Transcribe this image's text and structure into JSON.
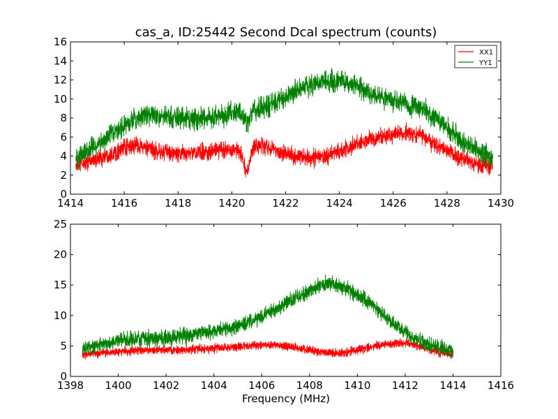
{
  "chart_data": [
    {
      "type": "line",
      "title": "cas_a, ID:25442 Second Dcal spectrum (counts)",
      "xlabel": "",
      "ylabel": "",
      "xlim": [
        1414,
        1430
      ],
      "ylim": [
        0,
        16
      ],
      "xticks": [
        "1414",
        "1416",
        "1418",
        "1420",
        "1422",
        "1424",
        "1426",
        "1428",
        "1430"
      ],
      "yticks": [
        "0",
        "2",
        "4",
        "6",
        "8",
        "10",
        "12",
        "14",
        "16"
      ],
      "grid": false,
      "legend": {
        "placement": "top-right",
        "entries": [
          "XX1",
          "YY1"
        ]
      },
      "series": [
        {
          "name": "XX1",
          "color": "#ff0000",
          "noise": 1.3,
          "x": [
            1414.2,
            1415.0,
            1416.0,
            1416.5,
            1417.0,
            1418.0,
            1419.0,
            1420.0,
            1420.3,
            1420.55,
            1420.8,
            1421.0,
            1421.5,
            1422.0,
            1422.5,
            1423.0,
            1423.5,
            1424.0,
            1424.5,
            1425.0,
            1425.5,
            1426.0,
            1426.5,
            1427.0,
            1427.5,
            1428.0,
            1428.5,
            1429.0,
            1429.7
          ],
          "y": [
            3.0,
            3.7,
            4.8,
            5.2,
            4.6,
            4.2,
            4.4,
            4.8,
            4.5,
            2.2,
            4.8,
            5.2,
            4.8,
            4.3,
            3.9,
            3.8,
            4.0,
            4.5,
            5.0,
            5.6,
            6.0,
            6.3,
            6.4,
            6.1,
            5.4,
            4.6,
            3.8,
            3.2,
            2.9
          ]
        },
        {
          "name": "YY1",
          "color": "#008000",
          "noise": 1.6,
          "x": [
            1414.2,
            1415.0,
            1416.0,
            1416.5,
            1417.0,
            1418.0,
            1419.0,
            1420.0,
            1420.3,
            1420.55,
            1420.8,
            1421.0,
            1421.5,
            1422.0,
            1422.5,
            1423.0,
            1423.5,
            1424.0,
            1424.5,
            1425.0,
            1425.5,
            1426.0,
            1426.5,
            1427.0,
            1427.5,
            1428.0,
            1428.5,
            1429.0,
            1429.7
          ],
          "y": [
            3.8,
            5.2,
            7.2,
            8.0,
            8.4,
            8.0,
            8.0,
            8.5,
            8.7,
            7.5,
            8.8,
            9.0,
            9.5,
            10.3,
            11.0,
            11.6,
            11.9,
            11.9,
            11.5,
            10.8,
            10.2,
            9.8,
            9.4,
            9.0,
            8.2,
            7.0,
            5.8,
            4.8,
            3.8
          ]
        }
      ]
    },
    {
      "type": "line",
      "title": "",
      "xlabel": "Frequency (MHz)",
      "ylabel": "",
      "xlim": [
        1398,
        1416
      ],
      "ylim": [
        0,
        25
      ],
      "xticks": [
        "1398",
        "1400",
        "1402",
        "1404",
        "1406",
        "1408",
        "1410",
        "1412",
        "1414",
        "1416"
      ],
      "yticks": [
        "0",
        "5",
        "10",
        "15",
        "20",
        "25"
      ],
      "grid": false,
      "series": [
        {
          "name": "XX1",
          "color": "#ff0000",
          "noise": 1.0,
          "x": [
            1398.5,
            1399.0,
            1400.0,
            1401.0,
            1402.0,
            1403.0,
            1404.0,
            1405.0,
            1406.0,
            1406.5,
            1407.0,
            1408.0,
            1408.5,
            1409.0,
            1409.5,
            1410.0,
            1411.0,
            1411.5,
            1412.0,
            1412.5,
            1413.0,
            1413.5,
            1414.0
          ],
          "y": [
            3.6,
            3.8,
            4.1,
            4.3,
            4.3,
            4.4,
            4.6,
            4.9,
            5.1,
            5.2,
            5.0,
            4.3,
            3.9,
            3.8,
            3.9,
            4.4,
            5.2,
            5.5,
            5.5,
            5.1,
            4.5,
            3.9,
            3.6
          ]
        },
        {
          "name": "YY1",
          "color": "#008000",
          "noise": 1.8,
          "x": [
            1398.5,
            1399.0,
            1400.0,
            1401.0,
            1402.0,
            1403.0,
            1404.0,
            1405.0,
            1406.0,
            1406.5,
            1407.0,
            1408.0,
            1408.5,
            1409.0,
            1409.5,
            1410.0,
            1411.0,
            1411.5,
            1412.0,
            1412.5,
            1413.0,
            1413.5,
            1414.0
          ],
          "y": [
            4.5,
            5.0,
            6.0,
            6.3,
            6.3,
            6.8,
            7.4,
            8.3,
            9.8,
            11.0,
            12.0,
            14.0,
            15.0,
            15.2,
            14.6,
            13.5,
            10.5,
            8.8,
            7.2,
            6.0,
            5.2,
            4.6,
            4.3
          ]
        }
      ]
    }
  ]
}
